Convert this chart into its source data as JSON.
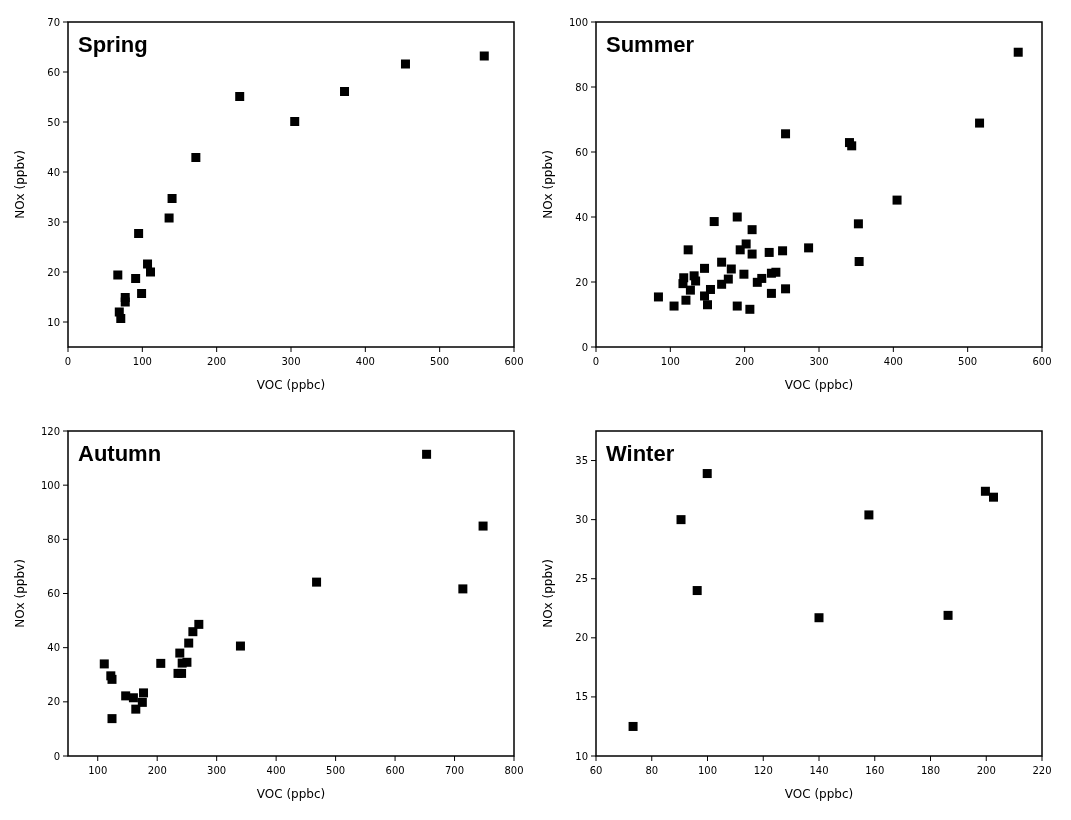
{
  "chart_data": [
    {
      "type": "scatter",
      "title": "Spring",
      "xlabel": "VOC (ppbc)",
      "ylabel": "NOx (ppbv)",
      "xlim": [
        0,
        600
      ],
      "xticks": [
        0,
        100,
        200,
        300,
        400,
        500,
        600
      ],
      "ylim": [
        5,
        70
      ],
      "yticks": [
        10,
        20,
        30,
        40,
        50,
        60,
        70
      ],
      "marker": "square",
      "series": [
        {
          "color": "#000000",
          "x": [
            67,
            69,
            71,
            77,
            77,
            91,
            95,
            99,
            107,
            111,
            136,
            140,
            172,
            231,
            305,
            372,
            454,
            560
          ],
          "values": [
            19.4,
            12,
            10.7,
            14.9,
            14,
            18.7,
            27.7,
            15.7,
            21.6,
            20,
            30.8,
            34.7,
            42.9,
            55.1,
            50.1,
            56.1,
            61.6,
            63.2
          ]
        }
      ]
    },
    {
      "type": "scatter",
      "title": "Summer",
      "xlabel": "VOC (ppbc)",
      "ylabel": "NOx (ppbv)",
      "xlim": [
        0,
        600
      ],
      "xticks": [
        0,
        100,
        200,
        300,
        400,
        500,
        600
      ],
      "ylim": [
        0,
        100
      ],
      "yticks": [
        0,
        20,
        40,
        60,
        80,
        100
      ],
      "marker": "square",
      "series": [
        {
          "color": "#000000",
          "x": [
            84,
            105,
            121,
            124,
            118,
            117,
            127,
            132,
            134,
            146,
            146,
            150,
            154,
            159,
            169,
            169,
            178,
            182,
            190,
            190,
            194,
            199,
            202,
            207,
            210,
            210,
            217,
            223,
            233,
            236,
            236,
            242,
            251,
            255,
            255,
            286,
            341,
            344,
            353,
            354,
            405,
            516,
            568
          ],
          "values": [
            15.4,
            12.6,
            14.4,
            29.9,
            21.3,
            19.5,
            17.5,
            21.9,
            20.3,
            24.2,
            15.7,
            13,
            17.7,
            38.6,
            26.1,
            19.3,
            20.9,
            24,
            40,
            12.6,
            29.9,
            22.4,
            31.7,
            11.6,
            28.6,
            36.1,
            19.9,
            21.1,
            29.1,
            16.5,
            22.7,
            23,
            29.6,
            17.9,
            65.6,
            30.5,
            62.9,
            61.9,
            37.9,
            26.3,
            45.2,
            68.9,
            90.7
          ]
        }
      ]
    },
    {
      "type": "scatter",
      "title": "Autumn",
      "xlabel": "VOC (ppbc)",
      "ylabel": "NOx (ppbv)",
      "xlim": [
        50,
        800
      ],
      "xticks": [
        100,
        200,
        300,
        400,
        500,
        600,
        700,
        800
      ],
      "ylim": [
        0,
        120
      ],
      "yticks": [
        0,
        20,
        40,
        60,
        80,
        100,
        120
      ],
      "marker": "square",
      "series": [
        {
          "color": "#000000",
          "x": [
            111,
            122,
            124,
            124,
            147,
            160,
            164,
            175,
            177,
            206,
            235,
            241,
            238,
            242,
            250,
            253,
            260,
            270,
            340,
            468,
            653,
            714,
            748
          ],
          "values": [
            34,
            29.6,
            28.3,
            13.8,
            22.2,
            21.5,
            17.3,
            19.8,
            23.3,
            34.2,
            30.5,
            30.5,
            38,
            34.3,
            34.6,
            41.7,
            45.9,
            48.6,
            40.6,
            64.2,
            111.4,
            61.7,
            84.9
          ]
        }
      ]
    },
    {
      "type": "scatter",
      "title": "Winter",
      "xlabel": "VOC (ppbc)",
      "ylabel": "NOx (ppbv)",
      "xlim": [
        60,
        220
      ],
      "xticks": [
        60,
        80,
        100,
        120,
        140,
        160,
        180,
        200,
        220
      ],
      "ylim": [
        10,
        37.5
      ],
      "yticks": [
        10,
        15,
        20,
        25,
        30,
        35
      ],
      "marker": "square",
      "series": [
        {
          "color": "#000000",
          "x": [
            73.3,
            90.5,
            96.3,
            99.9,
            140,
            157.9,
            186.3,
            199.7,
            202.6
          ],
          "values": [
            12.5,
            30,
            24,
            33.9,
            21.7,
            30.4,
            21.9,
            32.4,
            31.9
          ]
        }
      ]
    }
  ]
}
